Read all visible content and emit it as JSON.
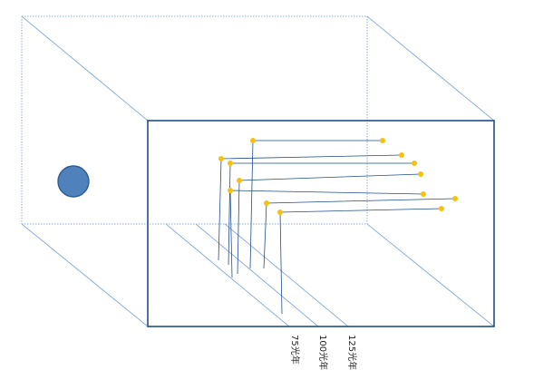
{
  "colors": {
    "box_edge": "#1f4e8c",
    "guide": "#8fb0d8",
    "hidden_edge": "#8fb0d8",
    "observer": "#4f81bd",
    "observer_stroke": "#2e5d94",
    "galaxy": "#f4c20d",
    "label": "#222222"
  },
  "observer": {
    "icon": "filled-circle"
  },
  "distance_labels": [
    {
      "text": "75光年"
    },
    {
      "text": "100光年"
    },
    {
      "text": "125光年"
    }
  ],
  "galaxies": [
    {
      "id": "g1"
    },
    {
      "id": "g2"
    },
    {
      "id": "g3"
    },
    {
      "id": "g4"
    },
    {
      "id": "g5"
    },
    {
      "id": "g6"
    },
    {
      "id": "g7"
    },
    {
      "id": "g8"
    }
  ]
}
